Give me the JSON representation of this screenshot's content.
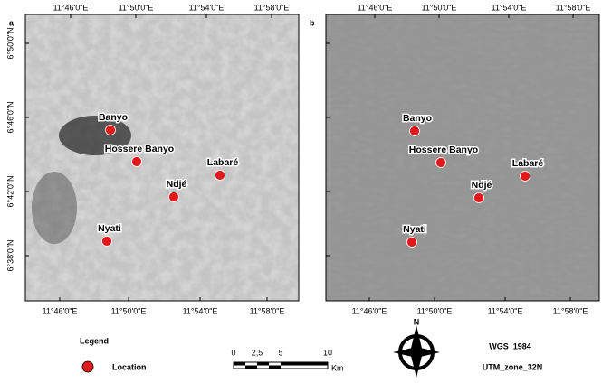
{
  "panels": [
    {
      "label": "a",
      "top_lon": [
        "11°46'0\"E",
        "11°50'0\"E",
        "11°54'0\"E",
        "11°58'0\"E"
      ],
      "bottom_lon": [
        "11°46'0\"E",
        "11°50'0\"E",
        "11°54'0\"E",
        "11°58'0\"E"
      ],
      "lat": [
        "6°50'0\"N",
        "6°46'0\"N",
        "6°42'0\"N",
        "6°38'0\"N"
      ],
      "locations": [
        "Banyo",
        "Hossere Banyo",
        "Labaré",
        "Ndjé",
        "Nyati"
      ]
    },
    {
      "label": "b",
      "top_lon": [
        "11°46'0\"E",
        "11°50'0\"E",
        "11°54'0\"E",
        "11°58'0\"E"
      ],
      "bottom_lon": [
        "11°46'0\"E",
        "11°50'0\"E",
        "11°54'0\"E",
        "11°58'0\"E"
      ],
      "locations": [
        "Banyo",
        "Hossere Banyo",
        "Labaré",
        "Ndjé",
        "Nyati"
      ]
    }
  ],
  "legend": {
    "title": "Legend",
    "item": "Location"
  },
  "scale_bar": {
    "labels": [
      "0",
      "2,5",
      "5",
      "10"
    ],
    "unit": "Km"
  },
  "north": "N",
  "projection": [
    "WGS_1984_",
    "UTM_zone_32N"
  ]
}
